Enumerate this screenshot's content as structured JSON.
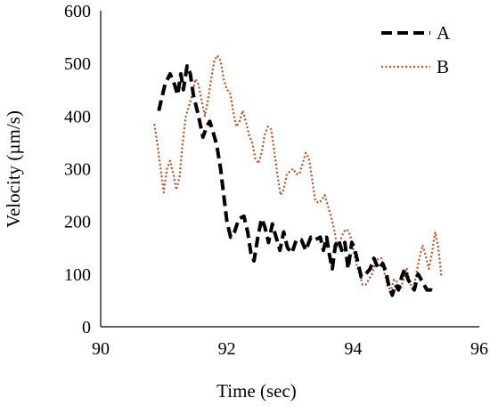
{
  "chart_data": {
    "type": "line",
    "xlabel": "Time (sec)",
    "ylabel": "Velocity (µm/s)",
    "xlim": [
      90,
      96
    ],
    "ylim": [
      0,
      600
    ],
    "xticks": [
      90,
      92,
      94,
      96
    ],
    "yticks": [
      0,
      100,
      200,
      300,
      400,
      500,
      600
    ],
    "grid": false,
    "legend_position": "top-right",
    "series": [
      {
        "name": "A",
        "color": "#000000",
        "style": "dashed",
        "points": [
          [
            90.92,
            410
          ],
          [
            91.02,
            460
          ],
          [
            91.1,
            480
          ],
          [
            91.17,
            460
          ],
          [
            91.22,
            440
          ],
          [
            91.27,
            480
          ],
          [
            91.31,
            450
          ],
          [
            91.37,
            495
          ],
          [
            91.42,
            480
          ],
          [
            91.47,
            440
          ],
          [
            91.55,
            400
          ],
          [
            91.62,
            360
          ],
          [
            91.68,
            380
          ],
          [
            91.73,
            390
          ],
          [
            91.78,
            370
          ],
          [
            91.84,
            345
          ],
          [
            91.9,
            300
          ],
          [
            91.95,
            250
          ],
          [
            92.0,
            200
          ],
          [
            92.06,
            170
          ],
          [
            92.12,
            180
          ],
          [
            92.19,
            205
          ],
          [
            92.27,
            210
          ],
          [
            92.33,
            180
          ],
          [
            92.38,
            140
          ],
          [
            92.43,
            125
          ],
          [
            92.49,
            170
          ],
          [
            92.55,
            205
          ],
          [
            92.6,
            190
          ],
          [
            92.66,
            160
          ],
          [
            92.72,
            195
          ],
          [
            92.78,
            170
          ],
          [
            92.84,
            145
          ],
          [
            92.9,
            180
          ],
          [
            92.96,
            150
          ],
          [
            93.03,
            140
          ],
          [
            93.1,
            165
          ],
          [
            93.18,
            165
          ],
          [
            93.25,
            145
          ],
          [
            93.33,
            170
          ],
          [
            93.4,
            165
          ],
          [
            93.48,
            170
          ],
          [
            93.53,
            145
          ],
          [
            93.58,
            170
          ],
          [
            93.62,
            140
          ],
          [
            93.67,
            110
          ],
          [
            93.72,
            155
          ],
          [
            93.77,
            165
          ],
          [
            93.82,
            145
          ],
          [
            93.87,
            160
          ],
          [
            93.92,
            110
          ],
          [
            93.98,
            160
          ],
          [
            94.02,
            150
          ],
          [
            94.07,
            125
          ],
          [
            94.13,
            95
          ],
          [
            94.2,
            100
          ],
          [
            94.27,
            110
          ],
          [
            94.33,
            130
          ],
          [
            94.4,
            110
          ],
          [
            94.47,
            120
          ],
          [
            94.52,
            105
          ],
          [
            94.57,
            75
          ],
          [
            94.62,
            60
          ],
          [
            94.67,
            80
          ],
          [
            94.72,
            70
          ],
          [
            94.77,
            95
          ],
          [
            94.82,
            110
          ],
          [
            94.87,
            90
          ],
          [
            94.92,
            80
          ],
          [
            94.97,
            70
          ],
          [
            95.03,
            100
          ],
          [
            95.1,
            85
          ],
          [
            95.17,
            70
          ],
          [
            95.23,
            70
          ],
          [
            95.3,
            65
          ]
        ]
      },
      {
        "name": "B",
        "color": "#b5532d",
        "style": "dotted",
        "points": [
          [
            90.85,
            385
          ],
          [
            90.9,
            345
          ],
          [
            90.95,
            300
          ],
          [
            91.0,
            255
          ],
          [
            91.05,
            300
          ],
          [
            91.1,
            315
          ],
          [
            91.15,
            290
          ],
          [
            91.2,
            260
          ],
          [
            91.25,
            285
          ],
          [
            91.3,
            350
          ],
          [
            91.35,
            400
          ],
          [
            91.4,
            420
          ],
          [
            91.45,
            440
          ],
          [
            91.5,
            470
          ],
          [
            91.55,
            460
          ],
          [
            91.6,
            430
          ],
          [
            91.65,
            400
          ],
          [
            91.7,
            430
          ],
          [
            91.75,
            470
          ],
          [
            91.8,
            505
          ],
          [
            91.85,
            515
          ],
          [
            91.9,
            505
          ],
          [
            91.95,
            470
          ],
          [
            92.0,
            450
          ],
          [
            92.05,
            445
          ],
          [
            92.1,
            410
          ],
          [
            92.15,
            380
          ],
          [
            92.2,
            390
          ],
          [
            92.25,
            410
          ],
          [
            92.3,
            390
          ],
          [
            92.35,
            365
          ],
          [
            92.4,
            350
          ],
          [
            92.45,
            320
          ],
          [
            92.5,
            310
          ],
          [
            92.55,
            330
          ],
          [
            92.6,
            365
          ],
          [
            92.65,
            380
          ],
          [
            92.7,
            375
          ],
          [
            92.75,
            335
          ],
          [
            92.8,
            290
          ],
          [
            92.85,
            250
          ],
          [
            92.9,
            260
          ],
          [
            92.95,
            290
          ],
          [
            93.0,
            295
          ],
          [
            93.05,
            300
          ],
          [
            93.1,
            290
          ],
          [
            93.15,
            290
          ],
          [
            93.2,
            310
          ],
          [
            93.25,
            330
          ],
          [
            93.3,
            320
          ],
          [
            93.35,
            280
          ],
          [
            93.4,
            240
          ],
          [
            93.45,
            235
          ],
          [
            93.5,
            240
          ],
          [
            93.55,
            250
          ],
          [
            93.6,
            230
          ],
          [
            93.65,
            210
          ],
          [
            93.7,
            185
          ],
          [
            93.75,
            150
          ],
          [
            93.8,
            165
          ],
          [
            93.85,
            180
          ],
          [
            93.9,
            185
          ],
          [
            93.95,
            175
          ],
          [
            94.0,
            150
          ],
          [
            94.05,
            120
          ],
          [
            94.1,
            100
          ],
          [
            94.15,
            80
          ],
          [
            94.2,
            80
          ],
          [
            94.25,
            90
          ],
          [
            94.3,
            100
          ],
          [
            94.35,
            120
          ],
          [
            94.4,
            130
          ],
          [
            94.45,
            130
          ],
          [
            94.5,
            100
          ],
          [
            94.55,
            75
          ],
          [
            94.6,
            70
          ],
          [
            94.65,
            90
          ],
          [
            94.7,
            85
          ],
          [
            94.75,
            70
          ],
          [
            94.8,
            90
          ],
          [
            94.85,
            110
          ],
          [
            94.9,
            85
          ],
          [
            94.95,
            70
          ],
          [
            95.0,
            100
          ],
          [
            95.05,
            130
          ],
          [
            95.1,
            155
          ],
          [
            95.15,
            135
          ],
          [
            95.2,
            110
          ],
          [
            95.25,
            140
          ],
          [
            95.3,
            180
          ],
          [
            95.35,
            150
          ],
          [
            95.4,
            95
          ]
        ]
      }
    ]
  }
}
